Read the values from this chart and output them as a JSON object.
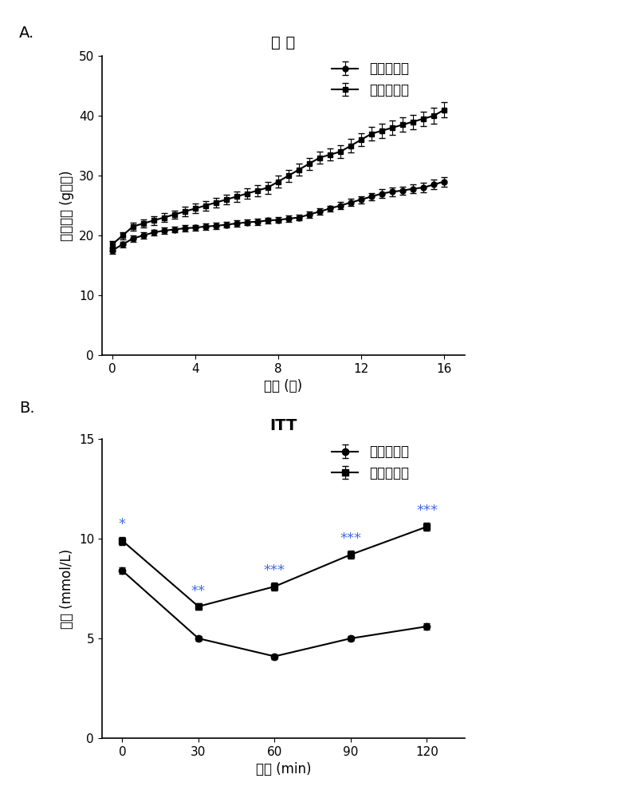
{
  "panel_A": {
    "title": "体 重",
    "xlabel": "时间 (周)",
    "ylabel": "平均体重 (g每天)",
    "xlim": [
      -0.5,
      17
    ],
    "ylim": [
      0,
      50
    ],
    "yticks": [
      0,
      10,
      20,
      30,
      40,
      50
    ],
    "xticks": [
      0,
      4,
      8,
      12,
      16
    ],
    "legend": [
      "空白对照组",
      "模型对照组"
    ],
    "series1_x": [
      0,
      0.5,
      1,
      1.5,
      2,
      2.5,
      3,
      3.5,
      4,
      4.5,
      5,
      5.5,
      6,
      6.5,
      7,
      7.5,
      8,
      8.5,
      9,
      9.5,
      10,
      10.5,
      11,
      11.5,
      12,
      12.5,
      13,
      13.5,
      14,
      14.5,
      15,
      15.5,
      16
    ],
    "series1_y": [
      17.5,
      18.5,
      19.5,
      20.0,
      20.5,
      20.8,
      21.0,
      21.2,
      21.3,
      21.5,
      21.6,
      21.8,
      22.0,
      22.2,
      22.3,
      22.5,
      22.6,
      22.8,
      23.0,
      23.5,
      24.0,
      24.5,
      25.0,
      25.5,
      26.0,
      26.5,
      27.0,
      27.3,
      27.5,
      27.8,
      28.0,
      28.5,
      29.0
    ],
    "series1_err": [
      0.5,
      0.5,
      0.5,
      0.5,
      0.5,
      0.5,
      0.5,
      0.5,
      0.5,
      0.5,
      0.5,
      0.5,
      0.5,
      0.5,
      0.5,
      0.5,
      0.5,
      0.5,
      0.5,
      0.5,
      0.5,
      0.5,
      0.6,
      0.6,
      0.6,
      0.6,
      0.7,
      0.7,
      0.7,
      0.7,
      0.8,
      0.8,
      0.8
    ],
    "series2_x": [
      0,
      0.5,
      1,
      1.5,
      2,
      2.5,
      3,
      3.5,
      4,
      4.5,
      5,
      5.5,
      6,
      6.5,
      7,
      7.5,
      8,
      8.5,
      9,
      9.5,
      10,
      10.5,
      11,
      11.5,
      12,
      12.5,
      13,
      13.5,
      14,
      14.5,
      15,
      15.5,
      16
    ],
    "series2_y": [
      18.5,
      20.0,
      21.5,
      22.0,
      22.5,
      23.0,
      23.5,
      24.0,
      24.5,
      25.0,
      25.5,
      26.0,
      26.5,
      27.0,
      27.5,
      28.0,
      29.0,
      30.0,
      31.0,
      32.0,
      33.0,
      33.5,
      34.0,
      35.0,
      36.0,
      37.0,
      37.5,
      38.0,
      38.5,
      39.0,
      39.5,
      40.0,
      41.0
    ],
    "series2_err": [
      0.6,
      0.6,
      0.7,
      0.7,
      0.7,
      0.7,
      0.7,
      0.8,
      0.8,
      0.8,
      0.8,
      0.8,
      0.9,
      0.9,
      0.9,
      1.0,
      1.0,
      1.0,
      1.0,
      1.0,
      1.0,
      1.0,
      1.1,
      1.1,
      1.1,
      1.1,
      1.2,
      1.2,
      1.2,
      1.2,
      1.2,
      1.3,
      1.3
    ]
  },
  "panel_B": {
    "title": "ITT",
    "xlabel": "时间 (min)",
    "ylabel": "血糖 (mmol/L)",
    "xlim": [
      -8,
      135
    ],
    "ylim": [
      0,
      15
    ],
    "yticks": [
      0,
      5,
      10,
      15
    ],
    "xticks": [
      0,
      30,
      60,
      90,
      120
    ],
    "legend": [
      "空白对照组",
      "模型对照组"
    ],
    "series1_x": [
      0,
      30,
      60,
      90,
      120
    ],
    "series1_y": [
      8.4,
      5.0,
      4.1,
      5.0,
      5.6
    ],
    "series1_err": [
      0.15,
      0.12,
      0.12,
      0.12,
      0.15
    ],
    "series2_x": [
      0,
      30,
      60,
      90,
      120
    ],
    "series2_y": [
      9.9,
      6.6,
      7.6,
      9.2,
      10.6
    ],
    "series2_err": [
      0.2,
      0.15,
      0.2,
      0.2,
      0.2
    ],
    "significance_x": [
      0,
      30,
      60,
      90,
      120
    ],
    "significance_labels": [
      "*",
      "**",
      "***",
      "***",
      "***"
    ],
    "sig_color": "#4169E1"
  },
  "line_color": "#000000",
  "marker1": "o",
  "marker2": "s",
  "markersize": 5,
  "linewidth": 1.5,
  "capsize": 3,
  "bg_color": "#ffffff",
  "label_fontsize": 12,
  "title_fontsize": 14,
  "tick_fontsize": 11,
  "legend_fontsize": 12,
  "sig_fontsize": 13
}
